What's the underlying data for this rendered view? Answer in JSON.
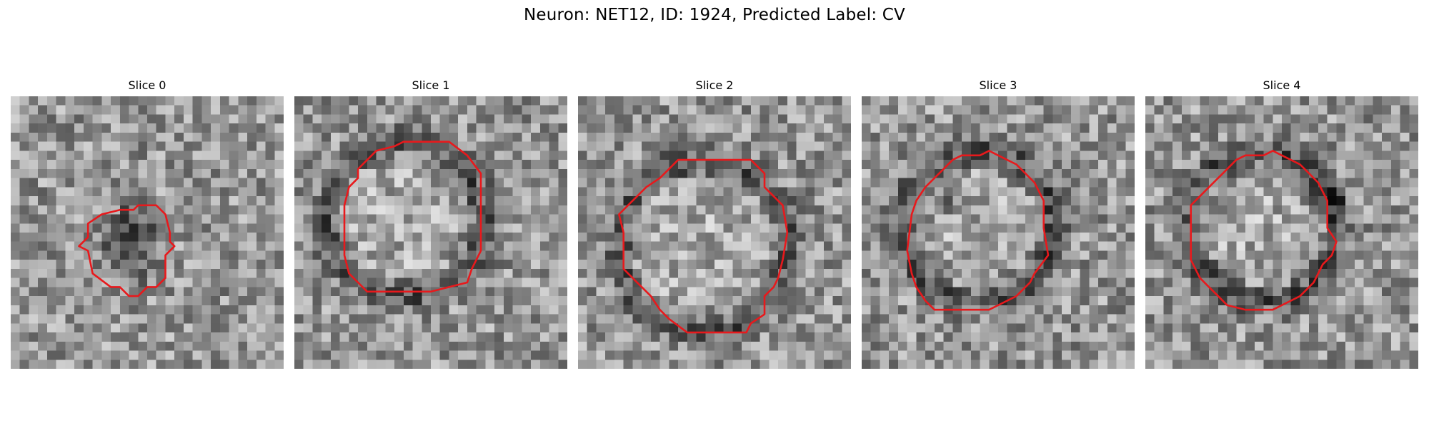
{
  "figure": {
    "title": "Neuron: NET12, ID: 1924, Predicted Label: CV"
  },
  "colors": {
    "contour": "#e8191c",
    "background": "#ffffff"
  },
  "panels": [
    {
      "title": "Slice 0",
      "roi_outline": [
        [
          13.5,
          12.5
        ],
        [
          14,
          12
        ],
        [
          16,
          12
        ],
        [
          17,
          13
        ],
        [
          17.5,
          15
        ],
        [
          17.5,
          16
        ],
        [
          18,
          16.5
        ],
        [
          17,
          17.5
        ],
        [
          17,
          20
        ],
        [
          16,
          21
        ],
        [
          15,
          21
        ],
        [
          14,
          22
        ],
        [
          13,
          22
        ],
        [
          12,
          21
        ],
        [
          11,
          21
        ],
        [
          9,
          19.5
        ],
        [
          8.5,
          17
        ],
        [
          7.5,
          16.5
        ],
        [
          8.5,
          15.5
        ],
        [
          8.5,
          14
        ],
        [
          10,
          13
        ],
        [
          12,
          12.5
        ]
      ],
      "dark_spot": [
        13.5,
        13.5
      ]
    },
    {
      "title": "Slice 1",
      "roi_outline": [
        [
          12,
          5
        ],
        [
          17,
          5
        ],
        [
          19,
          6.5
        ],
        [
          20.5,
          8.5
        ],
        [
          20.5,
          17
        ],
        [
          19.5,
          19
        ],
        [
          19,
          20.5
        ],
        [
          17,
          21
        ],
        [
          15,
          21.5
        ],
        [
          8,
          21.5
        ],
        [
          7,
          20.5
        ],
        [
          6,
          19.5
        ],
        [
          5.5,
          17.5
        ],
        [
          5.5,
          12
        ],
        [
          6,
          10
        ],
        [
          7,
          9
        ],
        [
          7,
          8
        ],
        [
          9,
          6
        ],
        [
          11,
          5.5
        ]
      ],
      "dark_spot": null
    },
    {
      "title": "Slice 2",
      "roi_outline": [
        [
          11,
          7
        ],
        [
          19,
          7
        ],
        [
          20.5,
          8.5
        ],
        [
          20.5,
          10
        ],
        [
          22.5,
          12
        ],
        [
          23,
          15
        ],
        [
          22.5,
          18
        ],
        [
          22,
          20
        ],
        [
          21.5,
          21
        ],
        [
          20.5,
          22
        ],
        [
          20.5,
          24
        ],
        [
          19,
          25
        ],
        [
          18.5,
          26
        ],
        [
          12,
          26
        ],
        [
          10,
          24.5
        ],
        [
          9,
          23.5
        ],
        [
          8,
          22
        ],
        [
          6,
          20
        ],
        [
          5,
          19
        ],
        [
          5,
          15
        ],
        [
          4.5,
          13
        ],
        [
          5.5,
          12
        ],
        [
          6.5,
          11
        ],
        [
          7.5,
          10
        ],
        [
          9,
          9
        ],
        [
          10,
          8
        ]
      ],
      "dark_spot": null
    },
    {
      "title": "Slice 3",
      "roi_outline": [
        [
          9,
          8
        ],
        [
          10,
          7
        ],
        [
          11,
          6.5
        ],
        [
          13,
          6.5
        ],
        [
          14,
          6
        ],
        [
          15,
          6.5
        ],
        [
          17,
          7.5
        ],
        [
          18,
          8.5
        ],
        [
          19,
          9.5
        ],
        [
          20,
          11.5
        ],
        [
          20,
          14.5
        ],
        [
          20.5,
          17.5
        ],
        [
          19,
          19.5
        ],
        [
          18.5,
          20.5
        ],
        [
          17,
          22
        ],
        [
          15,
          23
        ],
        [
          14,
          23.5
        ],
        [
          8,
          23.5
        ],
        [
          7,
          22.5
        ],
        [
          6,
          21
        ],
        [
          5.5,
          19.5
        ],
        [
          5,
          17
        ],
        [
          5.5,
          13
        ],
        [
          6,
          11.5
        ],
        [
          7,
          10
        ]
      ],
      "dark_spot": [
        8.5,
        11.5
      ]
    },
    {
      "title": "Slice 4",
      "roi_outline": [
        [
          9,
          8
        ],
        [
          10,
          7
        ],
        [
          11,
          6.5
        ],
        [
          13,
          6.5
        ],
        [
          14,
          6
        ],
        [
          15,
          6.5
        ],
        [
          17,
          7.5
        ],
        [
          18,
          8.5
        ],
        [
          19,
          9.5
        ],
        [
          20,
          11.5
        ],
        [
          20,
          14.5
        ],
        [
          21,
          16
        ],
        [
          20.5,
          17.5
        ],
        [
          19.5,
          18.5
        ],
        [
          18.5,
          20.5
        ],
        [
          17,
          22
        ],
        [
          15,
          23
        ],
        [
          14,
          23.5
        ],
        [
          11,
          23.5
        ],
        [
          9,
          23
        ],
        [
          8,
          22
        ],
        [
          7,
          21
        ],
        [
          6,
          20
        ],
        [
          5,
          18
        ],
        [
          5,
          12
        ],
        [
          6,
          11
        ],
        [
          7,
          10
        ],
        [
          8,
          9
        ]
      ],
      "dark_spot": [
        20,
        11.5
      ]
    }
  ]
}
